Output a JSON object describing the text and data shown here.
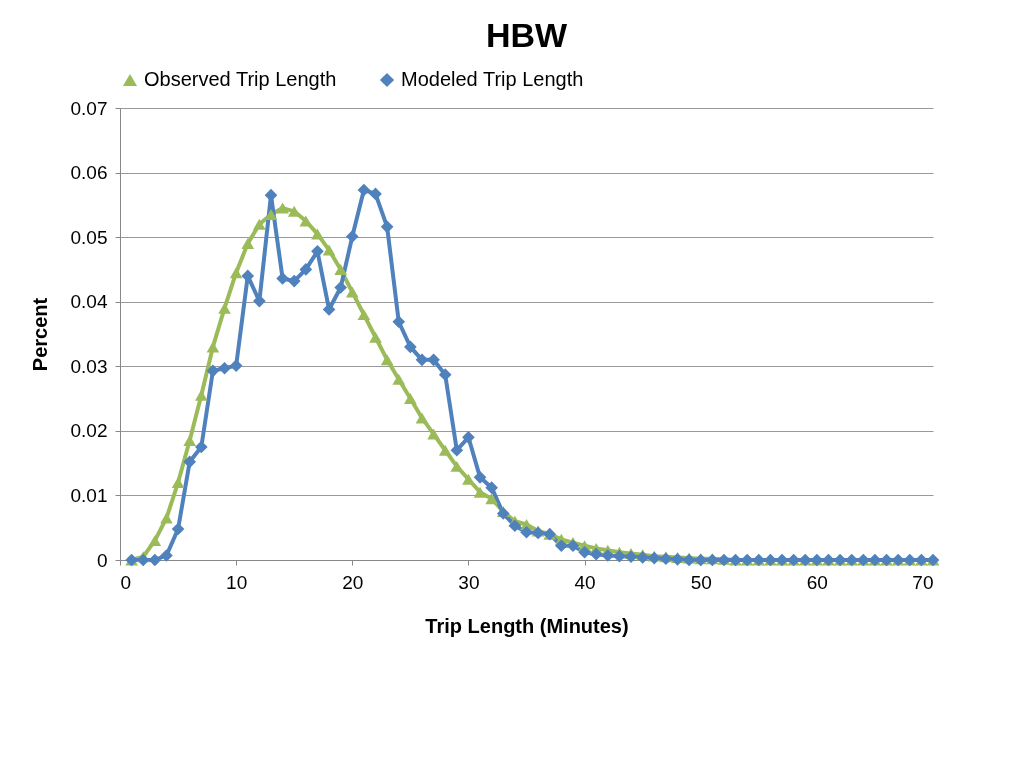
{
  "chart_data": {
    "type": "line",
    "title": "HBW",
    "xlabel": "Trip Length (Minutes)",
    "ylabel": "Percent",
    "x": [
      1,
      2,
      3,
      4,
      5,
      6,
      7,
      8,
      9,
      10,
      11,
      12,
      13,
      14,
      15,
      16,
      17,
      18,
      19,
      20,
      21,
      22,
      23,
      24,
      25,
      26,
      27,
      28,
      29,
      30,
      31,
      32,
      33,
      34,
      35,
      36,
      37,
      38,
      39,
      40,
      41,
      42,
      43,
      44,
      45,
      46,
      47,
      48,
      49,
      50,
      51,
      52,
      53,
      54,
      55,
      56,
      57,
      58,
      59,
      60,
      61,
      62,
      63,
      64,
      65,
      66,
      67,
      68,
      69,
      70
    ],
    "series": [
      {
        "name": "Observed Trip Length",
        "color": "#9bbb59",
        "marker": "triangle",
        "values": [
          0,
          0.0005,
          0.003,
          0.0065,
          0.012,
          0.0185,
          0.0255,
          0.033,
          0.039,
          0.0445,
          0.049,
          0.052,
          0.0535,
          0.0545,
          0.054,
          0.0525,
          0.0505,
          0.048,
          0.045,
          0.0415,
          0.038,
          0.0345,
          0.031,
          0.028,
          0.025,
          0.022,
          0.0195,
          0.017,
          0.0145,
          0.0125,
          0.0105,
          0.0095,
          0.0075,
          0.006,
          0.0055,
          0.0045,
          0.004,
          0.0032,
          0.0027,
          0.0022,
          0.0018,
          0.0015,
          0.0012,
          0.001,
          0.0008,
          0.0006,
          0.0005,
          0.0004,
          0.0003,
          0.0002,
          0.0002,
          0.0001,
          0,
          0,
          0,
          0,
          0,
          0,
          0,
          0,
          0,
          0,
          0,
          0,
          0,
          0,
          0,
          0,
          0,
          0
        ]
      },
      {
        "name": "Modeled Trip Length",
        "color": "#4f81bd",
        "marker": "diamond",
        "values": [
          0,
          0,
          0,
          0.0007,
          0.0048,
          0.0152,
          0.0175,
          0.0293,
          0.0297,
          0.0301,
          0.044,
          0.0401,
          0.0565,
          0.0436,
          0.0432,
          0.045,
          0.0478,
          0.0388,
          0.0422,
          0.0501,
          0.0573,
          0.0567,
          0.0516,
          0.0369,
          0.033,
          0.031,
          0.031,
          0.0287,
          0.017,
          0.019,
          0.0128,
          0.0112,
          0.0072,
          0.0053,
          0.0043,
          0.0042,
          0.004,
          0.0022,
          0.0022,
          0.0012,
          0.0009,
          0.0007,
          0.0006,
          0.0005,
          0.0004,
          0.0003,
          0.0002,
          0.0001,
          0,
          0,
          0,
          0,
          0,
          0,
          0,
          0,
          0,
          0,
          0,
          0,
          0,
          0,
          0,
          0,
          0,
          0,
          0,
          0,
          0,
          0
        ]
      }
    ],
    "xlim": [
      0,
      70
    ],
    "xticks": [
      0,
      10,
      20,
      30,
      40,
      50,
      60,
      70
    ],
    "ylim": [
      0,
      0.07
    ],
    "yticks": [
      0,
      0.01,
      0.02,
      0.03,
      0.04,
      0.05,
      0.06,
      0.07
    ],
    "grid": "y",
    "legend": "top",
    "line_style": "solid"
  }
}
